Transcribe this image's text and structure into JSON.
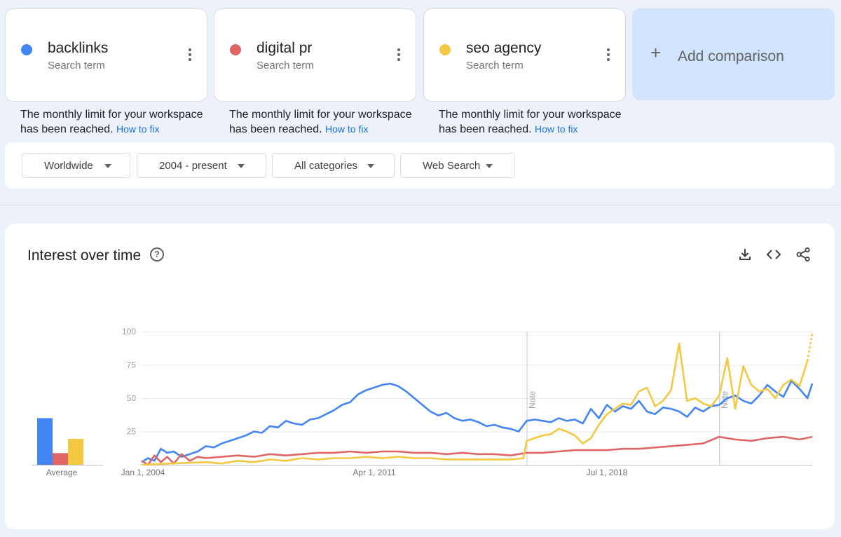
{
  "terms": [
    {
      "name": "backlinks",
      "subtitle": "Search term",
      "color": "#4285f4",
      "notice": "The monthly limit for your workspace has been reached.",
      "fix_link": "How to fix"
    },
    {
      "name": "digital pr",
      "subtitle": "Search term",
      "color": "#e06666",
      "notice": "The monthly limit for your workspace has been reached.",
      "fix_link": "How to fix"
    },
    {
      "name": "seo agency",
      "subtitle": "Search term",
      "color": "#f4c842",
      "notice": "The monthly limit for your workspace has been reached.",
      "fix_link": "How to fix"
    }
  ],
  "add_comparison": {
    "icon": "plus-icon",
    "label": "Add comparison"
  },
  "filters": {
    "region": "Worldwide",
    "time_range": "2004 - present",
    "category": "All categories",
    "search_type": "Web Search"
  },
  "chart_card": {
    "title": "Interest over time",
    "help_icon": "question-circle-icon",
    "tools": [
      "download-icon",
      "embed-code-icon",
      "share-icon"
    ]
  },
  "chart_data": [
    {
      "type": "bar",
      "categories": [
        "backlinks",
        "digital pr",
        "seo agency"
      ],
      "values": [
        36,
        9,
        20
      ],
      "colors": [
        "#4285f4",
        "#e06666",
        "#f4c842"
      ],
      "xlabel": "Average",
      "ylim": [
        0,
        100
      ]
    },
    {
      "type": "line",
      "x_label_ticks": [
        "Jan 1, 2004",
        "Apr 1, 2011",
        "Jul 1, 2018"
      ],
      "y_ticks": [
        25,
        50,
        75,
        100
      ],
      "ylim": [
        0,
        100
      ],
      "xlim": [
        2004.0,
        2024.9
      ],
      "grid": true,
      "annotations": [
        {
          "label": "Note",
          "x": 2016.0
        },
        {
          "label": "Note",
          "x": 2022.0
        }
      ],
      "series": [
        {
          "name": "backlinks",
          "color": "#4285f4",
          "x": [
            2004.0,
            2004.2,
            2004.4,
            2004.6,
            2004.8,
            2005.0,
            2005.25,
            2005.5,
            2005.75,
            2006.0,
            2006.25,
            2006.5,
            2006.75,
            2007.0,
            2007.25,
            2007.5,
            2007.75,
            2008.0,
            2008.25,
            2008.5,
            2008.75,
            2009.0,
            2009.25,
            2009.5,
            2009.75,
            2010.0,
            2010.25,
            2010.5,
            2010.75,
            2011.0,
            2011.25,
            2011.5,
            2011.75,
            2012.0,
            2012.25,
            2012.5,
            2012.75,
            2013.0,
            2013.25,
            2013.5,
            2013.75,
            2014.0,
            2014.25,
            2014.5,
            2014.75,
            2015.0,
            2015.25,
            2015.5,
            2015.75,
            2016.0,
            2016.25,
            2016.5,
            2016.75,
            2017.0,
            2017.25,
            2017.5,
            2017.75,
            2018.0,
            2018.25,
            2018.5,
            2018.75,
            2019.0,
            2019.25,
            2019.5,
            2019.75,
            2020.0,
            2020.25,
            2020.5,
            2020.75,
            2021.0,
            2021.25,
            2021.5,
            2021.75,
            2022.0,
            2022.25,
            2022.5,
            2022.75,
            2023.0,
            2023.25,
            2023.5,
            2023.75,
            2024.0,
            2024.25,
            2024.5,
            2024.75,
            2024.9
          ],
          "y": [
            2,
            5,
            3,
            12,
            9,
            10,
            6,
            8,
            10,
            14,
            13,
            16,
            18,
            20,
            22,
            25,
            24,
            29,
            28,
            33,
            31,
            30,
            34,
            35,
            38,
            41,
            45,
            47,
            53,
            56,
            58,
            60,
            61,
            59,
            55,
            50,
            45,
            40,
            37,
            39,
            35,
            33,
            34,
            32,
            29,
            30,
            28,
            27,
            25,
            33,
            34,
            33,
            32,
            35,
            33,
            34,
            31,
            42,
            35,
            45,
            40,
            44,
            42,
            48,
            40,
            38,
            43,
            42,
            40,
            36,
            43,
            40,
            44,
            45,
            50,
            52,
            48,
            46,
            52,
            60,
            55,
            51,
            63,
            57,
            50,
            61
          ]
        },
        {
          "name": "digital pr",
          "color": "#e06666",
          "x": [
            2004.0,
            2004.2,
            2004.4,
            2004.6,
            2004.8,
            2005.0,
            2005.25,
            2005.5,
            2005.75,
            2006.0,
            2006.5,
            2007.0,
            2007.5,
            2008.0,
            2008.5,
            2009.0,
            2009.5,
            2010.0,
            2010.5,
            2011.0,
            2011.5,
            2012.0,
            2012.5,
            2013.0,
            2013.5,
            2014.0,
            2014.5,
            2015.0,
            2015.5,
            2016.0,
            2016.5,
            2017.0,
            2017.5,
            2018.0,
            2018.5,
            2019.0,
            2019.5,
            2020.0,
            2020.5,
            2021.0,
            2021.5,
            2022.0,
            2022.5,
            2023.0,
            2023.5,
            2024.0,
            2024.5,
            2024.9
          ],
          "y": [
            3,
            0,
            7,
            2,
            6,
            1,
            8,
            3,
            6,
            5,
            6,
            7,
            6,
            8,
            7,
            8,
            9,
            9,
            10,
            9,
            10,
            10,
            9,
            9,
            8,
            9,
            8,
            8,
            7,
            9,
            9,
            10,
            11,
            11,
            11,
            12,
            12,
            13,
            14,
            15,
            16,
            21,
            19,
            18,
            20,
            21,
            19,
            21
          ]
        },
        {
          "name": "seo agency",
          "color": "#f4c842",
          "x": [
            2004.0,
            2005.0,
            2006.0,
            2006.5,
            2007.0,
            2007.5,
            2008.0,
            2008.5,
            2009.0,
            2009.5,
            2010.0,
            2010.5,
            2011.0,
            2011.5,
            2012.0,
            2012.5,
            2013.0,
            2013.5,
            2014.0,
            2014.5,
            2015.0,
            2015.5,
            2015.9,
            2016.0,
            2016.25,
            2016.5,
            2016.75,
            2017.0,
            2017.25,
            2017.5,
            2017.75,
            2018.0,
            2018.25,
            2018.5,
            2018.75,
            2019.0,
            2019.25,
            2019.5,
            2019.75,
            2020.0,
            2020.25,
            2020.5,
            2020.75,
            2021.0,
            2021.25,
            2021.5,
            2021.75,
            2022.0,
            2022.25,
            2022.5,
            2022.75,
            2023.0,
            2023.25,
            2023.5,
            2023.75,
            2024.0,
            2024.25,
            2024.5,
            2024.75,
            2024.9
          ],
          "y": [
            0,
            1,
            2,
            1,
            3,
            2,
            4,
            3,
            5,
            4,
            5,
            5,
            6,
            5,
            6,
            5,
            5,
            4,
            4,
            4,
            4,
            4,
            5,
            18,
            20,
            22,
            23,
            27,
            25,
            22,
            16,
            20,
            30,
            38,
            42,
            46,
            45,
            55,
            58,
            44,
            48,
            56,
            91,
            48,
            50,
            46,
            44,
            52,
            80,
            42,
            74,
            60,
            55,
            57,
            50,
            60,
            64,
            59,
            78,
            99
          ]
        }
      ]
    }
  ]
}
